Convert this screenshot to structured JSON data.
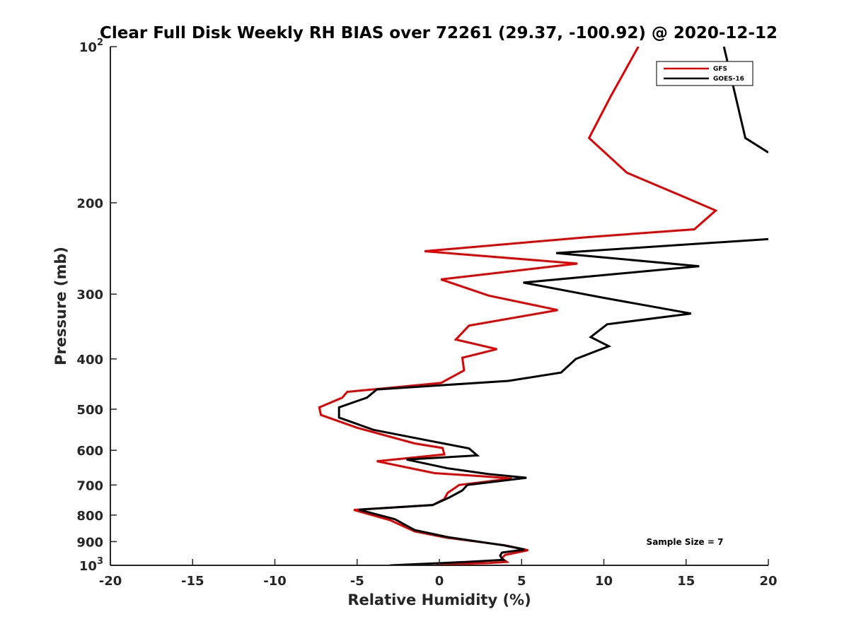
{
  "chart_data": {
    "type": "line",
    "title": "Clear Full Disk Weekly RH BIAS over 72261 (29.37, -100.92) @ 2020-12-12",
    "xlabel": "Relative Humidity (%)",
    "ylabel": "Pressure (mb)",
    "xlim": [
      -20,
      20
    ],
    "ylim": [
      100,
      1000
    ],
    "y_scale": "log",
    "y_reversed": true,
    "grid": false,
    "legend_position": "top-right",
    "x_ticks": [
      "-20",
      "-15",
      "-10",
      "-5",
      "0",
      "5",
      "10",
      "15",
      "20"
    ],
    "y_ticks": [
      {
        "value": 100,
        "base": "10",
        "exp": "2"
      },
      {
        "value": 200,
        "label": "200"
      },
      {
        "value": 300,
        "label": "300"
      },
      {
        "value": 400,
        "label": "400"
      },
      {
        "value": 500,
        "label": "500"
      },
      {
        "value": 600,
        "label": "600"
      },
      {
        "value": 700,
        "label": "700"
      },
      {
        "value": 800,
        "label": "800"
      },
      {
        "value": 900,
        "label": "900"
      },
      {
        "value": 1000,
        "base": "10",
        "exp": "3"
      }
    ],
    "annotation": "Sample Size = 7",
    "series": [
      {
        "name": "GFS",
        "color": "#e30000",
        "points": [
          [
            12.1,
            100
          ],
          [
            10.4,
            125
          ],
          [
            9.1,
            150
          ],
          [
            11.4,
            175
          ],
          [
            14.9,
            195
          ],
          [
            16.8,
            207
          ],
          [
            15.5,
            225
          ],
          [
            9.0,
            233
          ],
          [
            -0.9,
            248
          ],
          [
            8.4,
            262
          ],
          [
            0.1,
            281
          ],
          [
            3.0,
            302
          ],
          [
            7.2,
            322
          ],
          [
            1.8,
            345
          ],
          [
            1.0,
            367
          ],
          [
            3.5,
            383
          ],
          [
            1.4,
            398
          ],
          [
            1.5,
            421
          ],
          [
            0.1,
            445
          ],
          [
            -5.6,
            463
          ],
          [
            -5.9,
            475
          ],
          [
            -7.3,
            496
          ],
          [
            -7.2,
            513
          ],
          [
            -5.0,
            543
          ],
          [
            -1.5,
            582
          ],
          [
            0.2,
            594
          ],
          [
            0.3,
            611
          ],
          [
            -3.8,
            630
          ],
          [
            -0.3,
            664
          ],
          [
            2.5,
            673
          ],
          [
            4.4,
            680
          ],
          [
            1.2,
            700
          ],
          [
            0.9,
            711
          ],
          [
            0.5,
            725
          ],
          [
            0.3,
            745
          ],
          [
            -0.4,
            765
          ],
          [
            -5.2,
            782
          ],
          [
            -3.0,
            818
          ],
          [
            -1.5,
            860
          ],
          [
            0.5,
            885
          ],
          [
            4.0,
            915
          ],
          [
            5.4,
            935
          ],
          [
            4.0,
            955
          ],
          [
            3.8,
            968
          ],
          [
            3.9,
            975
          ],
          [
            4.1,
            985
          ],
          [
            3.0,
            990
          ],
          [
            -0.2,
            996
          ]
        ]
      },
      {
        "name": "GOES-16",
        "color": "#000000",
        "points": [
          [
            17.3,
            100
          ],
          [
            18.6,
            150
          ],
          [
            20.0,
            160
          ],
          [
            null,
            null
          ],
          [
            20.0,
            235
          ],
          [
            7.1,
            250
          ],
          [
            15.8,
            265
          ],
          [
            5.1,
            285
          ],
          [
            10.0,
            305
          ],
          [
            15.3,
            327
          ],
          [
            10.2,
            343
          ],
          [
            9.2,
            363
          ],
          [
            10.3,
            378
          ],
          [
            8.3,
            400
          ],
          [
            7.4,
            425
          ],
          [
            4.2,
            441
          ],
          [
            -3.8,
            458
          ],
          [
            -4.4,
            475
          ],
          [
            -6.1,
            496
          ],
          [
            -6.1,
            519
          ],
          [
            -4.0,
            548
          ],
          [
            -0.5,
            576
          ],
          [
            1.8,
            595
          ],
          [
            2.3,
            614
          ],
          [
            -2.0,
            625
          ],
          [
            0.5,
            650
          ],
          [
            3.0,
            667
          ],
          [
            5.3,
            678
          ],
          [
            1.7,
            700
          ],
          [
            1.4,
            717
          ],
          [
            0.6,
            740
          ],
          [
            -0.4,
            765
          ],
          [
            -4.9,
            781
          ],
          [
            -2.7,
            815
          ],
          [
            -1.5,
            855
          ],
          [
            0.5,
            882
          ],
          [
            3.9,
            915
          ],
          [
            5.2,
            932
          ],
          [
            3.8,
            945
          ],
          [
            3.7,
            958
          ],
          [
            3.8,
            971
          ],
          [
            3.9,
            976
          ],
          [
            1.6,
            985
          ],
          [
            -3.0,
            1000
          ]
        ]
      }
    ]
  }
}
